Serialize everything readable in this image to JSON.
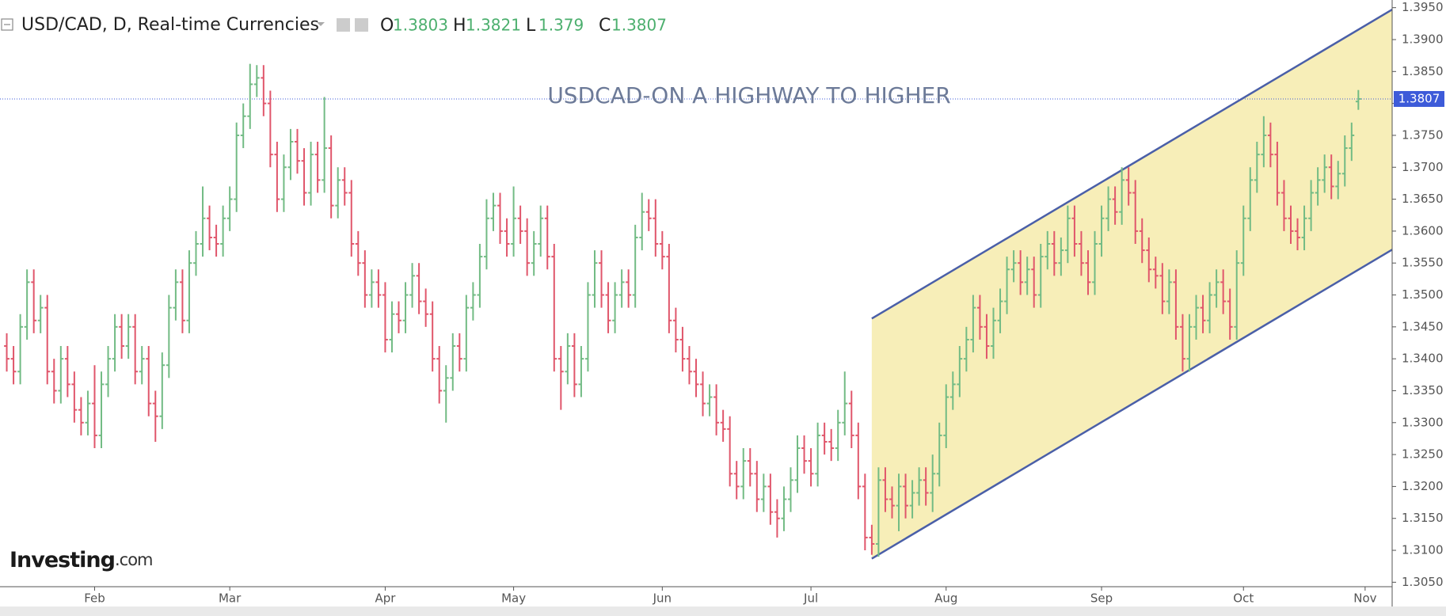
{
  "chart_data": {
    "type": "ohlc",
    "title": "USD/CAD, D, Real-time Currencies",
    "ohlc_labels": [
      "O",
      "H",
      "L",
      "C"
    ],
    "annotation": "USDCAD-ON A HIGHWAY TO HIGHER",
    "logo": [
      "Investing",
      ".com"
    ],
    "up_color": "#72bb84",
    "down_color": "#e0566b",
    "channel_color": "#f7eeb8",
    "line_color": "#4a5fa8",
    "price_color": "#3d5bd9",
    "xlim": [
      -1,
      205
    ],
    "xticks": [
      {
        "value": 13,
        "label": "Feb"
      },
      {
        "value": 33,
        "label": "Mar"
      },
      {
        "value": 56,
        "label": "Apr"
      },
      {
        "value": 75,
        "label": "May"
      },
      {
        "value": 97,
        "label": "Jun"
      },
      {
        "value": 119,
        "label": "Jul"
      },
      {
        "value": 139,
        "label": "Aug"
      },
      {
        "value": 162,
        "label": "Sep"
      },
      {
        "value": 183,
        "label": "Oct"
      },
      {
        "value": 201,
        "label": "Nov"
      }
    ],
    "ylim": [
      1.3043,
      1.3962
    ],
    "yticks": [
      {
        "value": 1.305,
        "label": "1.3050"
      },
      {
        "value": 1.31,
        "label": "1.3100"
      },
      {
        "value": 1.315,
        "label": "1.3150"
      },
      {
        "value": 1.32,
        "label": "1.3200"
      },
      {
        "value": 1.325,
        "label": "1.3250"
      },
      {
        "value": 1.33,
        "label": "1.3300"
      },
      {
        "value": 1.335,
        "label": "1.3350"
      },
      {
        "value": 1.34,
        "label": "1.3400"
      },
      {
        "value": 1.345,
        "label": "1.3450"
      },
      {
        "value": 1.35,
        "label": "1.3500"
      },
      {
        "value": 1.355,
        "label": "1.3550"
      },
      {
        "value": 1.36,
        "label": "1.3600"
      },
      {
        "value": 1.365,
        "label": "1.3650"
      },
      {
        "value": 1.37,
        "label": "1.3700"
      },
      {
        "value": 1.375,
        "label": "1.3750"
      },
      {
        "value": 1.38,
        "label": "1.3800"
      },
      {
        "value": 1.385,
        "label": "1.3850"
      },
      {
        "value": 1.39,
        "label": "1.3900"
      },
      {
        "value": 1.395,
        "label": "1.3950"
      }
    ],
    "channel": {
      "x": [
        128,
        205
      ],
      "upper": [
        1.3463,
        1.3947
      ],
      "lower": [
        1.3087,
        1.3571
      ]
    },
    "ohlc": [
      [
        1.342,
        1.344,
        1.338,
        1.34
      ],
      [
        1.34,
        1.342,
        1.336,
        1.338
      ],
      [
        1.338,
        1.347,
        1.336,
        1.345
      ],
      [
        1.345,
        1.354,
        1.343,
        1.352
      ],
      [
        1.352,
        1.354,
        1.344,
        1.346
      ],
      [
        1.346,
        1.35,
        1.344,
        1.348
      ],
      [
        1.348,
        1.35,
        1.336,
        1.338
      ],
      [
        1.338,
        1.34,
        1.333,
        1.335
      ],
      [
        1.335,
        1.342,
        1.333,
        1.34
      ],
      [
        1.34,
        1.342,
        1.334,
        1.336
      ],
      [
        1.336,
        1.338,
        1.33,
        1.332
      ],
      [
        1.332,
        1.334,
        1.328,
        1.33
      ],
      [
        1.33,
        1.335,
        1.328,
        1.333
      ],
      [
        1.333,
        1.339,
        1.326,
        1.328
      ],
      [
        1.328,
        1.338,
        1.326,
        1.336
      ],
      [
        1.336,
        1.342,
        1.334,
        1.34
      ],
      [
        1.34,
        1.347,
        1.338,
        1.345
      ],
      [
        1.345,
        1.347,
        1.34,
        1.342
      ],
      [
        1.342,
        1.347,
        1.34,
        1.345
      ],
      [
        1.345,
        1.347,
        1.336,
        1.338
      ],
      [
        1.338,
        1.342,
        1.336,
        1.34
      ],
      [
        1.34,
        1.342,
        1.331,
        1.333
      ],
      [
        1.333,
        1.335,
        1.327,
        1.331
      ],
      [
        1.331,
        1.341,
        1.329,
        1.339
      ],
      [
        1.339,
        1.35,
        1.337,
        1.348
      ],
      [
        1.348,
        1.354,
        1.346,
        1.352
      ],
      [
        1.352,
        1.354,
        1.344,
        1.346
      ],
      [
        1.346,
        1.357,
        1.344,
        1.355
      ],
      [
        1.355,
        1.36,
        1.353,
        1.358
      ],
      [
        1.358,
        1.367,
        1.356,
        1.362
      ],
      [
        1.362,
        1.364,
        1.357,
        1.359
      ],
      [
        1.359,
        1.361,
        1.356,
        1.358
      ],
      [
        1.358,
        1.364,
        1.356,
        1.362
      ],
      [
        1.362,
        1.367,
        1.36,
        1.365
      ],
      [
        1.365,
        1.377,
        1.363,
        1.375
      ],
      [
        1.375,
        1.38,
        1.373,
        1.378
      ],
      [
        1.378,
        1.3862,
        1.376,
        1.383
      ],
      [
        1.383,
        1.386,
        1.381,
        1.384
      ],
      [
        1.384,
        1.386,
        1.378,
        1.38
      ],
      [
        1.38,
        1.382,
        1.37,
        1.372
      ],
      [
        1.372,
        1.374,
        1.363,
        1.365
      ],
      [
        1.365,
        1.372,
        1.363,
        1.37
      ],
      [
        1.37,
        1.376,
        1.368,
        1.374
      ],
      [
        1.374,
        1.376,
        1.369,
        1.371
      ],
      [
        1.371,
        1.373,
        1.364,
        1.366
      ],
      [
        1.366,
        1.374,
        1.364,
        1.372
      ],
      [
        1.372,
        1.374,
        1.366,
        1.368
      ],
      [
        1.368,
        1.381,
        1.366,
        1.373
      ],
      [
        1.373,
        1.375,
        1.362,
        1.364
      ],
      [
        1.364,
        1.37,
        1.362,
        1.368
      ],
      [
        1.368,
        1.37,
        1.364,
        1.366
      ],
      [
        1.366,
        1.368,
        1.356,
        1.358
      ],
      [
        1.358,
        1.36,
        1.353,
        1.355
      ],
      [
        1.355,
        1.357,
        1.348,
        1.35
      ],
      [
        1.35,
        1.354,
        1.348,
        1.352
      ],
      [
        1.352,
        1.354,
        1.348,
        1.35
      ],
      [
        1.35,
        1.352,
        1.341,
        1.343
      ],
      [
        1.343,
        1.349,
        1.341,
        1.347
      ],
      [
        1.347,
        1.349,
        1.344,
        1.346
      ],
      [
        1.346,
        1.352,
        1.344,
        1.35
      ],
      [
        1.35,
        1.355,
        1.348,
        1.353
      ],
      [
        1.353,
        1.355,
        1.347,
        1.349
      ],
      [
        1.349,
        1.351,
        1.345,
        1.347
      ],
      [
        1.347,
        1.349,
        1.338,
        1.34
      ],
      [
        1.34,
        1.342,
        1.333,
        1.335
      ],
      [
        1.335,
        1.339,
        1.33,
        1.337
      ],
      [
        1.337,
        1.344,
        1.335,
        1.342
      ],
      [
        1.342,
        1.344,
        1.338,
        1.34
      ],
      [
        1.34,
        1.35,
        1.338,
        1.348
      ],
      [
        1.348,
        1.352,
        1.346,
        1.35
      ],
      [
        1.35,
        1.358,
        1.348,
        1.356
      ],
      [
        1.356,
        1.365,
        1.354,
        1.362
      ],
      [
        1.362,
        1.366,
        1.36,
        1.364
      ],
      [
        1.364,
        1.366,
        1.358,
        1.36
      ],
      [
        1.36,
        1.362,
        1.356,
        1.358
      ],
      [
        1.358,
        1.367,
        1.356,
        1.362
      ],
      [
        1.362,
        1.364,
        1.358,
        1.36
      ],
      [
        1.36,
        1.362,
        1.353,
        1.355
      ],
      [
        1.355,
        1.36,
        1.353,
        1.358
      ],
      [
        1.358,
        1.364,
        1.356,
        1.362
      ],
      [
        1.362,
        1.364,
        1.354,
        1.356
      ],
      [
        1.356,
        1.358,
        1.338,
        1.34
      ],
      [
        1.34,
        1.342,
        1.332,
        1.338
      ],
      [
        1.338,
        1.344,
        1.336,
        1.342
      ],
      [
        1.342,
        1.344,
        1.334,
        1.336
      ],
      [
        1.336,
        1.342,
        1.334,
        1.34
      ],
      [
        1.34,
        1.352,
        1.338,
        1.35
      ],
      [
        1.35,
        1.357,
        1.348,
        1.355
      ],
      [
        1.355,
        1.357,
        1.348,
        1.35
      ],
      [
        1.35,
        1.352,
        1.344,
        1.346
      ],
      [
        1.346,
        1.352,
        1.344,
        1.35
      ],
      [
        1.35,
        1.354,
        1.348,
        1.352
      ],
      [
        1.352,
        1.354,
        1.348,
        1.35
      ],
      [
        1.35,
        1.361,
        1.348,
        1.359
      ],
      [
        1.359,
        1.366,
        1.357,
        1.363
      ],
      [
        1.363,
        1.365,
        1.36,
        1.362
      ],
      [
        1.362,
        1.365,
        1.356,
        1.358
      ],
      [
        1.358,
        1.36,
        1.354,
        1.356
      ],
      [
        1.356,
        1.358,
        1.344,
        1.346
      ],
      [
        1.346,
        1.348,
        1.341,
        1.343
      ],
      [
        1.343,
        1.345,
        1.338,
        1.34
      ],
      [
        1.34,
        1.342,
        1.336,
        1.338
      ],
      [
        1.338,
        1.34,
        1.334,
        1.336
      ],
      [
        1.336,
        1.338,
        1.331,
        1.333
      ],
      [
        1.333,
        1.336,
        1.331,
        1.334
      ],
      [
        1.334,
        1.336,
        1.328,
        1.33
      ],
      [
        1.33,
        1.332,
        1.327,
        1.329
      ],
      [
        1.329,
        1.331,
        1.32,
        1.322
      ],
      [
        1.322,
        1.324,
        1.318,
        1.32
      ],
      [
        1.32,
        1.326,
        1.318,
        1.324
      ],
      [
        1.324,
        1.326,
        1.32,
        1.322
      ],
      [
        1.322,
        1.324,
        1.316,
        1.318
      ],
      [
        1.318,
        1.322,
        1.316,
        1.32
      ],
      [
        1.32,
        1.322,
        1.314,
        1.316
      ],
      [
        1.316,
        1.318,
        1.312,
        1.315
      ],
      [
        1.315,
        1.32,
        1.313,
        1.318
      ],
      [
        1.318,
        1.323,
        1.316,
        1.321
      ],
      [
        1.321,
        1.328,
        1.319,
        1.326
      ],
      [
        1.326,
        1.328,
        1.322,
        1.324
      ],
      [
        1.324,
        1.326,
        1.32,
        1.322
      ],
      [
        1.322,
        1.33,
        1.32,
        1.328
      ],
      [
        1.328,
        1.33,
        1.325,
        1.327
      ],
      [
        1.327,
        1.329,
        1.324,
        1.326
      ],
      [
        1.326,
        1.332,
        1.324,
        1.33
      ],
      [
        1.33,
        1.338,
        1.328,
        1.333
      ],
      [
        1.333,
        1.335,
        1.326,
        1.328
      ],
      [
        1.328,
        1.33,
        1.318,
        1.32
      ],
      [
        1.32,
        1.322,
        1.31,
        1.312
      ],
      [
        1.312,
        1.314,
        1.3093,
        1.311
      ],
      [
        1.311,
        1.323,
        1.309,
        1.321
      ],
      [
        1.321,
        1.323,
        1.316,
        1.318
      ],
      [
        1.318,
        1.32,
        1.315,
        1.317
      ],
      [
        1.317,
        1.322,
        1.313,
        1.32
      ],
      [
        1.32,
        1.322,
        1.315,
        1.317
      ],
      [
        1.317,
        1.321,
        1.315,
        1.319
      ],
      [
        1.319,
        1.323,
        1.317,
        1.321
      ],
      [
        1.321,
        1.323,
        1.317,
        1.319
      ],
      [
        1.319,
        1.325,
        1.316,
        1.322
      ],
      [
        1.322,
        1.33,
        1.32,
        1.328
      ],
      [
        1.328,
        1.336,
        1.326,
        1.334
      ],
      [
        1.334,
        1.338,
        1.332,
        1.336
      ],
      [
        1.336,
        1.342,
        1.334,
        1.34
      ],
      [
        1.34,
        1.345,
        1.338,
        1.343
      ],
      [
        1.343,
        1.35,
        1.341,
        1.348
      ],
      [
        1.348,
        1.35,
        1.343,
        1.345
      ],
      [
        1.345,
        1.347,
        1.34,
        1.342
      ],
      [
        1.342,
        1.348,
        1.34,
        1.346
      ],
      [
        1.346,
        1.351,
        1.344,
        1.349
      ],
      [
        1.349,
        1.356,
        1.347,
        1.354
      ],
      [
        1.354,
        1.357,
        1.352,
        1.355
      ],
      [
        1.355,
        1.357,
        1.35,
        1.352
      ],
      [
        1.352,
        1.356,
        1.35,
        1.354
      ],
      [
        1.354,
        1.356,
        1.348,
        1.35
      ],
      [
        1.35,
        1.358,
        1.348,
        1.356
      ],
      [
        1.356,
        1.36,
        1.354,
        1.358
      ],
      [
        1.358,
        1.36,
        1.353,
        1.355
      ],
      [
        1.355,
        1.359,
        1.353,
        1.357
      ],
      [
        1.357,
        1.364,
        1.355,
        1.362
      ],
      [
        1.362,
        1.364,
        1.356,
        1.358
      ],
      [
        1.358,
        1.36,
        1.353,
        1.355
      ],
      [
        1.355,
        1.357,
        1.35,
        1.352
      ],
      [
        1.352,
        1.36,
        1.35,
        1.358
      ],
      [
        1.358,
        1.364,
        1.356,
        1.362
      ],
      [
        1.362,
        1.367,
        1.36,
        1.365
      ],
      [
        1.365,
        1.367,
        1.361,
        1.363
      ],
      [
        1.363,
        1.37,
        1.361,
        1.368
      ],
      [
        1.368,
        1.37,
        1.364,
        1.366
      ],
      [
        1.366,
        1.368,
        1.358,
        1.36
      ],
      [
        1.36,
        1.362,
        1.355,
        1.357
      ],
      [
        1.357,
        1.359,
        1.352,
        1.354
      ],
      [
        1.354,
        1.356,
        1.351,
        1.353
      ],
      [
        1.353,
        1.355,
        1.347,
        1.349
      ],
      [
        1.349,
        1.354,
        1.347,
        1.352
      ],
      [
        1.352,
        1.354,
        1.343,
        1.345
      ],
      [
        1.345,
        1.347,
        1.338,
        1.34
      ],
      [
        1.34,
        1.347,
        1.338,
        1.345
      ],
      [
        1.345,
        1.35,
        1.343,
        1.348
      ],
      [
        1.348,
        1.35,
        1.344,
        1.346
      ],
      [
        1.346,
        1.352,
        1.344,
        1.35
      ],
      [
        1.35,
        1.354,
        1.348,
        1.352
      ],
      [
        1.352,
        1.354,
        1.347,
        1.349
      ],
      [
        1.349,
        1.351,
        1.343,
        1.345
      ],
      [
        1.345,
        1.357,
        1.343,
        1.355
      ],
      [
        1.355,
        1.364,
        1.353,
        1.362
      ],
      [
        1.362,
        1.37,
        1.36,
        1.368
      ],
      [
        1.368,
        1.374,
        1.366,
        1.372
      ],
      [
        1.372,
        1.378,
        1.37,
        1.375
      ],
      [
        1.375,
        1.377,
        1.37,
        1.372
      ],
      [
        1.372,
        1.374,
        1.364,
        1.366
      ],
      [
        1.366,
        1.368,
        1.36,
        1.362
      ],
      [
        1.362,
        1.364,
        1.358,
        1.36
      ],
      [
        1.36,
        1.362,
        1.357,
        1.359
      ],
      [
        1.359,
        1.364,
        1.357,
        1.362
      ],
      [
        1.362,
        1.368,
        1.36,
        1.366
      ],
      [
        1.366,
        1.37,
        1.364,
        1.368
      ],
      [
        1.368,
        1.372,
        1.366,
        1.37
      ],
      [
        1.37,
        1.372,
        1.365,
        1.367
      ],
      [
        1.367,
        1.371,
        1.365,
        1.369
      ],
      [
        1.369,
        1.375,
        1.367,
        1.373
      ],
      [
        1.373,
        1.377,
        1.371,
        1.375
      ],
      [
        1.3803,
        1.3821,
        1.379,
        1.3807
      ]
    ]
  }
}
